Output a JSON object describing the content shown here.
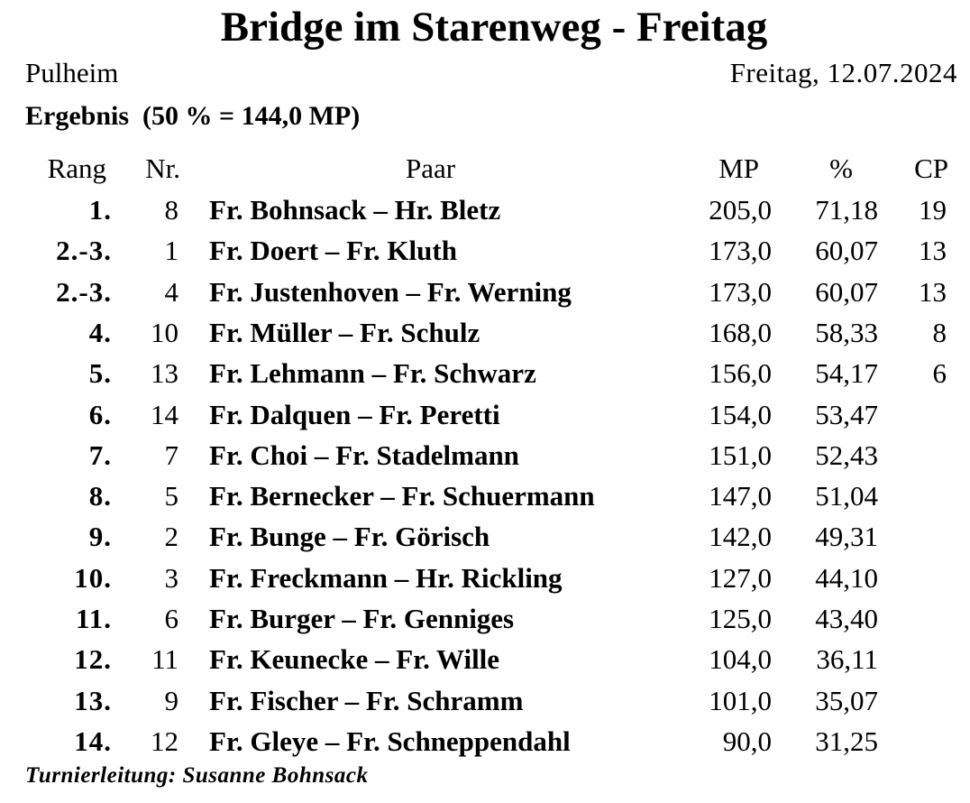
{
  "title": "Bridge im Starenweg - Freitag",
  "place": "Pulheim",
  "date": "Freitag, 12.07.2024",
  "result_line": "Ergebnis  (50 % = 144,0 MP)",
  "columns": {
    "rank": "Rang",
    "nr": "Nr.",
    "pair": "Paar",
    "mp": "MP",
    "pct": "%",
    "cp": "CP"
  },
  "rows": [
    {
      "rank": "1.",
      "nr": "8",
      "pair": "Fr. Bohnsack – Hr. Bletz",
      "mp": "205,0",
      "pct": "71,18",
      "cp": "19"
    },
    {
      "rank": "2.-3.",
      "nr": "1",
      "pair": "Fr. Doert – Fr. Kluth",
      "mp": "173,0",
      "pct": "60,07",
      "cp": "13"
    },
    {
      "rank": "2.-3.",
      "nr": "4",
      "pair": "Fr. Justenhoven – Fr. Werning",
      "mp": "173,0",
      "pct": "60,07",
      "cp": "13"
    },
    {
      "rank": "4.",
      "nr": "10",
      "pair": "Fr. Müller – Fr. Schulz",
      "mp": "168,0",
      "pct": "58,33",
      "cp": "8"
    },
    {
      "rank": "5.",
      "nr": "13",
      "pair": "Fr. Lehmann – Fr. Schwarz",
      "mp": "156,0",
      "pct": "54,17",
      "cp": "6"
    },
    {
      "rank": "6.",
      "nr": "14",
      "pair": "Fr. Dalquen – Fr. Peretti",
      "mp": "154,0",
      "pct": "53,47",
      "cp": ""
    },
    {
      "rank": "7.",
      "nr": "7",
      "pair": "Fr. Choi – Fr. Stadelmann",
      "mp": "151,0",
      "pct": "52,43",
      "cp": ""
    },
    {
      "rank": "8.",
      "nr": "5",
      "pair": "Fr. Bernecker – Fr. Schuermann",
      "mp": "147,0",
      "pct": "51,04",
      "cp": ""
    },
    {
      "rank": "9.",
      "nr": "2",
      "pair": "Fr. Bunge – Fr. Görisch",
      "mp": "142,0",
      "pct": "49,31",
      "cp": ""
    },
    {
      "rank": "10.",
      "nr": "3",
      "pair": "Fr. Freckmann – Hr. Rickling",
      "mp": "127,0",
      "pct": "44,10",
      "cp": ""
    },
    {
      "rank": "11.",
      "nr": "6",
      "pair": "Fr. Burger – Fr. Genniges",
      "mp": "125,0",
      "pct": "43,40",
      "cp": ""
    },
    {
      "rank": "12.",
      "nr": "11",
      "pair": "Fr. Keunecke – Fr. Wille",
      "mp": "104,0",
      "pct": "36,11",
      "cp": ""
    },
    {
      "rank": "13.",
      "nr": "9",
      "pair": "Fr. Fischer – Fr. Schramm",
      "mp": "101,0",
      "pct": "35,07",
      "cp": ""
    },
    {
      "rank": "14.",
      "nr": "12",
      "pair": "Fr. Gleye – Fr. Schneppendahl",
      "mp": "90,0",
      "pct": "31,25",
      "cp": ""
    }
  ],
  "footer": "Turnierleitung: Susanne Bohnsack"
}
